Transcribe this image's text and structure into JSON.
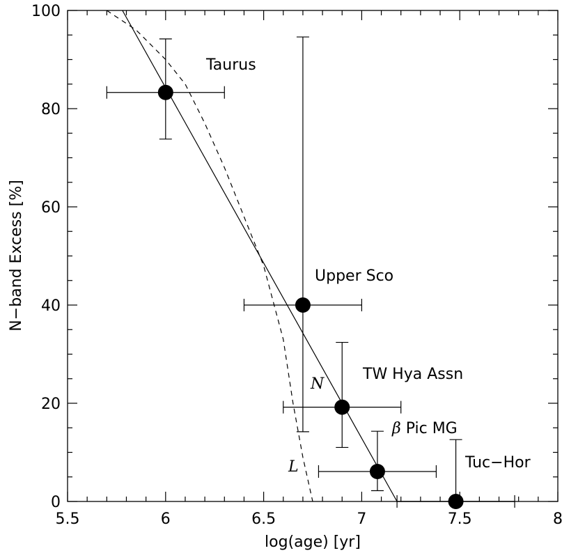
{
  "chart_data": {
    "type": "scatter",
    "title": "",
    "xlabel": "log(age)  [yr]",
    "ylabel": "N−band Excess [%]",
    "xlim": [
      5.5,
      8
    ],
    "ylim": [
      0,
      100
    ],
    "xticks": [
      "5.5",
      "6",
      "6.5",
      "7",
      "7.5",
      "8"
    ],
    "xtick_values": [
      5.5,
      6,
      6.5,
      7,
      7.5,
      8
    ],
    "yticks": [
      "0",
      "20",
      "40",
      "60",
      "80",
      "100"
    ],
    "ytick_values": [
      0,
      20,
      40,
      60,
      80,
      100
    ],
    "grid": false,
    "points": [
      {
        "label": "Taurus",
        "label_prefix": "",
        "x": 6.0,
        "y": 83.3,
        "xerr": [
          5.7,
          6.3
        ],
        "yerr": [
          73.8,
          94.2
        ]
      },
      {
        "label": "Upper Sco",
        "label_prefix": "",
        "x": 6.7,
        "y": 40.0,
        "xerr": [
          6.4,
          7.0
        ],
        "yerr": [
          14.2,
          94.6
        ]
      },
      {
        "label": "TW Hya Assn",
        "label_prefix": "",
        "x": 6.9,
        "y": 19.2,
        "xerr": [
          6.6,
          7.2
        ],
        "yerr": [
          11.0,
          32.4
        ]
      },
      {
        "label": "Pic MG",
        "label_prefix": "β",
        "x": 7.08,
        "y": 6.1,
        "xerr": [
          6.78,
          7.38
        ],
        "yerr": [
          2.2,
          14.3
        ]
      },
      {
        "label": "Tuc−Hor",
        "label_prefix": "",
        "x": 7.48,
        "y": 0.0,
        "xerr": [
          7.18,
          7.78
        ],
        "yerr": [
          0.0,
          12.6
        ]
      }
    ],
    "curves": [
      {
        "label": "N",
        "style": "solid",
        "x": [
          5.78,
          7.18
        ],
        "y": [
          100,
          0
        ]
      },
      {
        "label": "L",
        "style": "dashed",
        "x": [
          5.7,
          5.85,
          6.0,
          6.1,
          6.2,
          6.3,
          6.4,
          6.5,
          6.6,
          6.65,
          6.7,
          6.75
        ],
        "y": [
          100,
          96,
          90,
          85,
          77,
          68,
          58,
          48,
          33,
          20,
          9,
          0
        ]
      }
    ]
  }
}
